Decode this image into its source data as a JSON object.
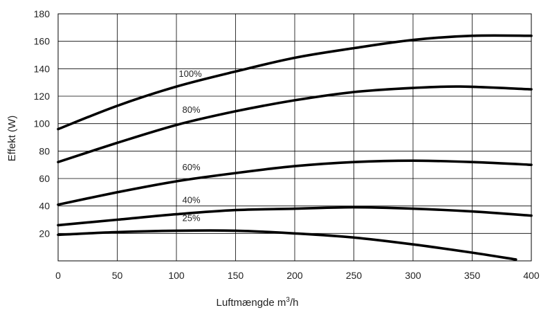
{
  "chart_data": {
    "type": "line",
    "title": "",
    "xlabel_main": "Luftmængde m",
    "xlabel_sup": "3",
    "xlabel_tail": "/h",
    "ylabel": "Effekt (W)",
    "xlim": [
      0,
      400
    ],
    "ylim": [
      0,
      180
    ],
    "x_ticks": [
      "0",
      "50",
      "100",
      "150",
      "200",
      "250",
      "300",
      "350",
      "400"
    ],
    "y_ticks": [
      "20",
      "40",
      "60",
      "80",
      "100",
      "120",
      "140",
      "160",
      "180"
    ],
    "grid": true,
    "line_color": "#000000",
    "series": [
      {
        "name": "100%",
        "label_at": [
          102,
          134
        ],
        "points": [
          [
            0,
            96
          ],
          [
            50,
            113
          ],
          [
            100,
            127
          ],
          [
            150,
            138
          ],
          [
            200,
            148
          ],
          [
            250,
            155
          ],
          [
            300,
            161
          ],
          [
            350,
            164
          ],
          [
            400,
            164
          ]
        ]
      },
      {
        "name": "80%",
        "label_at": [
          105,
          108
        ],
        "points": [
          [
            0,
            72
          ],
          [
            50,
            86
          ],
          [
            100,
            99
          ],
          [
            150,
            109
          ],
          [
            200,
            117
          ],
          [
            250,
            123
          ],
          [
            300,
            126
          ],
          [
            340,
            127
          ],
          [
            400,
            125
          ]
        ]
      },
      {
        "name": "60%",
        "label_at": [
          105,
          66
        ],
        "points": [
          [
            0,
            41
          ],
          [
            50,
            50
          ],
          [
            100,
            58
          ],
          [
            150,
            64
          ],
          [
            200,
            69
          ],
          [
            250,
            72
          ],
          [
            300,
            73
          ],
          [
            350,
            72
          ],
          [
            400,
            70
          ]
        ]
      },
      {
        "name": "40%",
        "label_at": [
          105,
          42
        ],
        "points": [
          [
            0,
            26
          ],
          [
            50,
            30
          ],
          [
            100,
            34
          ],
          [
            150,
            37
          ],
          [
            200,
            38
          ],
          [
            250,
            39
          ],
          [
            300,
            38
          ],
          [
            350,
            36
          ],
          [
            400,
            33
          ]
        ]
      },
      {
        "name": "25%",
        "label_at": [
          105,
          29
        ],
        "points": [
          [
            0,
            19
          ],
          [
            50,
            21
          ],
          [
            100,
            22
          ],
          [
            150,
            22
          ],
          [
            200,
            20
          ],
          [
            250,
            17
          ],
          [
            300,
            12
          ],
          [
            350,
            6
          ],
          [
            387,
            1
          ]
        ]
      }
    ]
  }
}
